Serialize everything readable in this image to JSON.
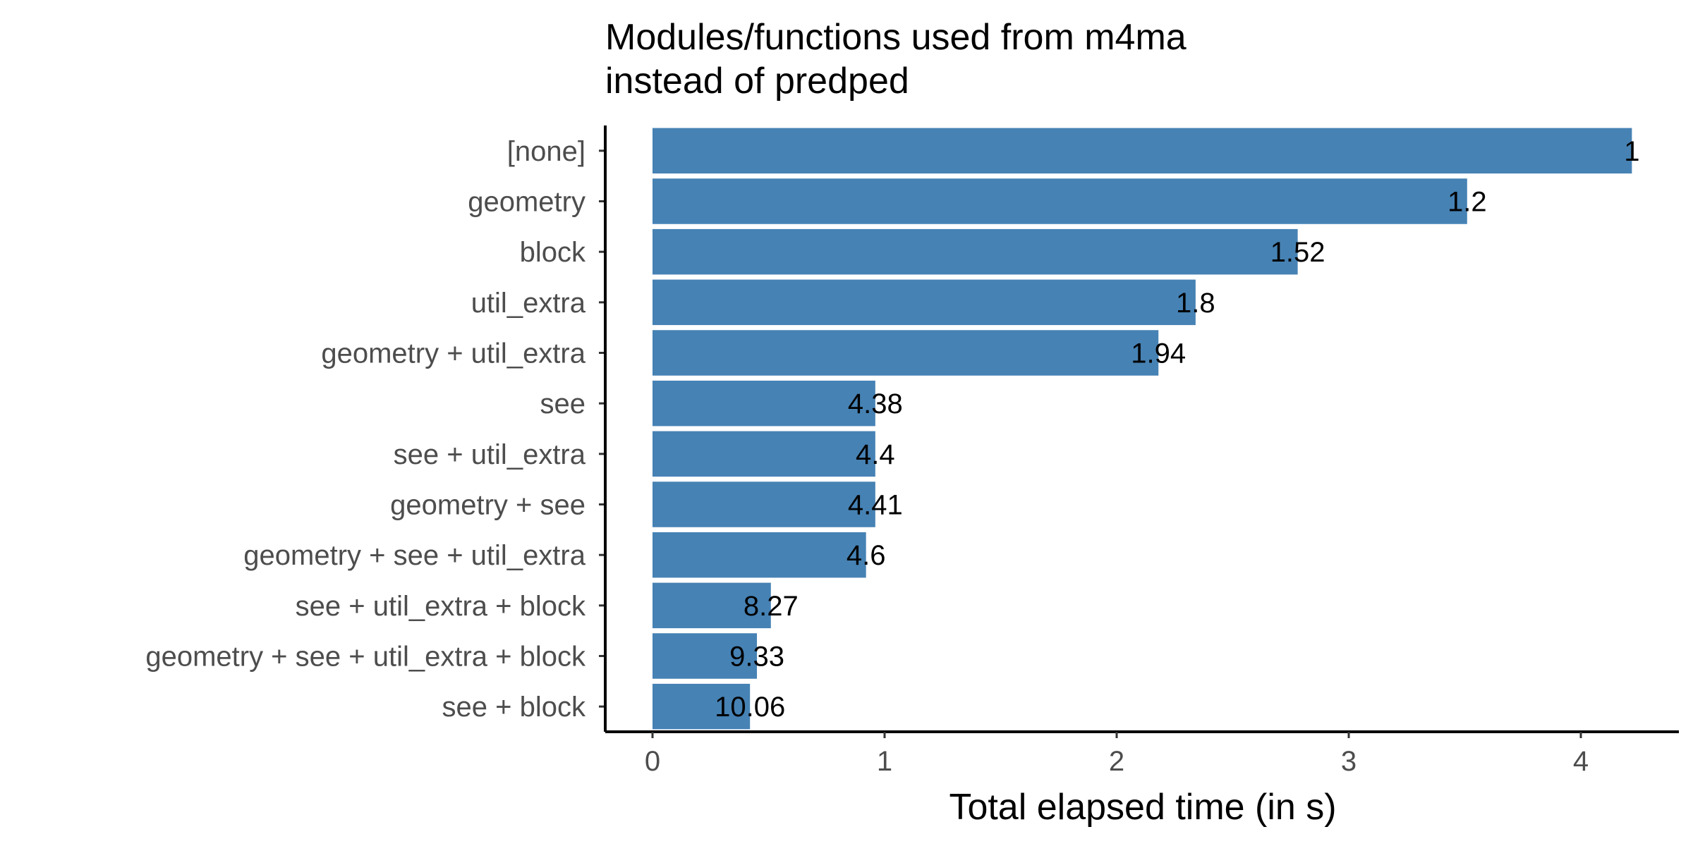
{
  "chart_data": {
    "type": "bar",
    "orientation": "horizontal",
    "title": "Modules/functions used from m4ma\ninstead of predped",
    "xlabel": "Total elapsed time (in s)",
    "ylabel": "",
    "xlim": [
      0,
      4.35
    ],
    "xticks": [
      0,
      1,
      2,
      3,
      4
    ],
    "grid": false,
    "bar_color": "#4682B4",
    "categories": [
      "[none]",
      "geometry",
      "block",
      "util_extra",
      "geometry + util_extra",
      "see",
      "see + util_extra",
      "geometry + see",
      "geometry + see + util_extra",
      "see + util_extra + block",
      "geometry + see + util_extra + block",
      "see + block"
    ],
    "values": [
      4.22,
      3.51,
      2.78,
      2.34,
      2.18,
      0.96,
      0.96,
      0.96,
      0.92,
      0.51,
      0.45,
      0.42
    ],
    "data_labels": [
      "1",
      "1.2",
      "1.52",
      "1.8",
      "1.94",
      "4.38",
      "4.4",
      "4.41",
      "4.6",
      "8.27",
      "9.33",
      "10.06"
    ]
  }
}
